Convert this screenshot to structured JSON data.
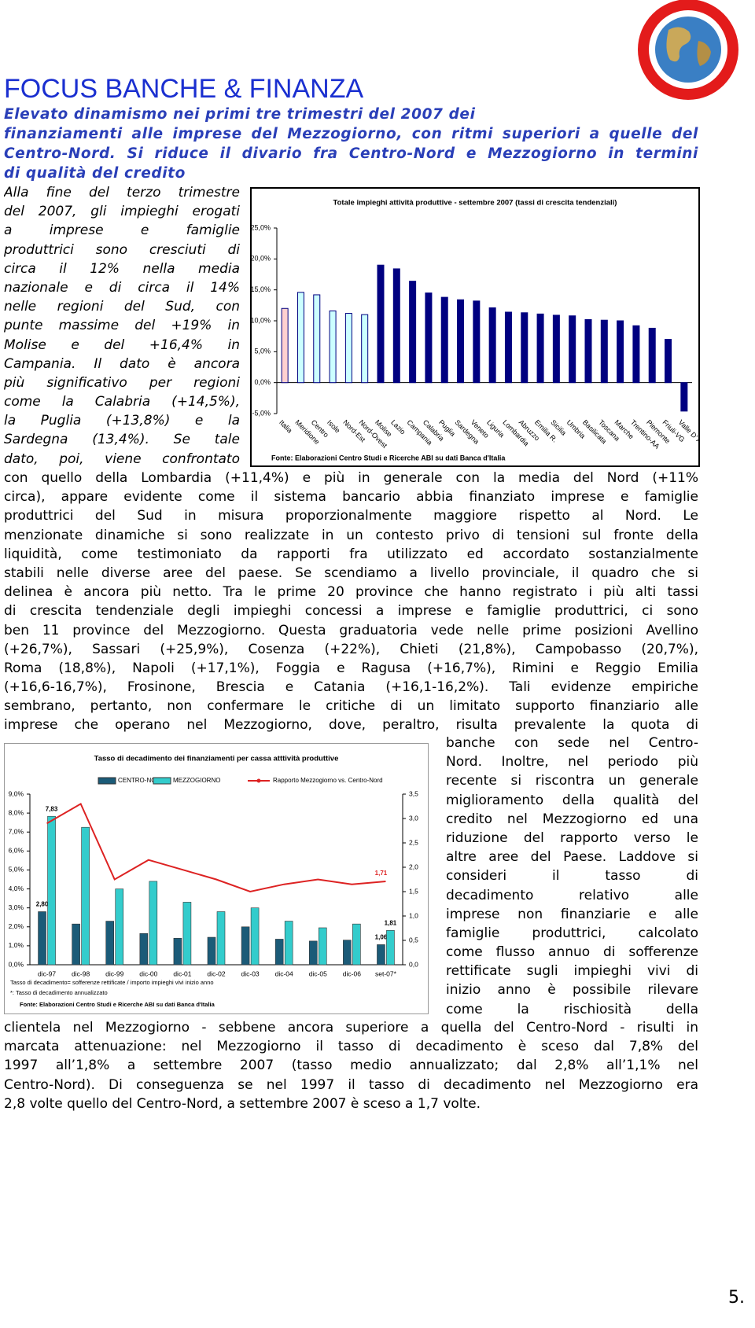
{
  "header": {
    "title": "FOCUS BANCHE & FINANZA",
    "subtitle_lines": [
      "Elevato dinamismo nei primi tre trimestri del 2007 dei",
      "finanziamenti alle imprese del Mezzogiorno, con ritmi superiori a quelle del",
      "Centro-Nord. Si riduce il divario fra Centro-Nord e Mezzogiorno in termini",
      "di qualità del credito"
    ]
  },
  "body": {
    "column_left": [
      "Alla fine del terzo trimestre",
      "del 2007, gli impieghi erogati",
      "a imprese e famiglie",
      "produttrici sono cresciuti di",
      "circa il 12% nella media",
      "nazionale e di circa il 14%",
      "nelle regioni del Sud, con",
      "punte massime del +19% in",
      "Molise e del +16,4% in",
      "Campania. Il dato è ancora",
      "più significativo per regioni",
      "come la Calabria (+14,5%),",
      "la Puglia (+13,8%) e la",
      "Sardegna (13,4%). Se tale",
      "dato, poi, viene confrontato"
    ],
    "full_1": [
      "con quello della Lombardia (+11,4%) e più in generale con la media del Nord (+11%",
      "circa), appare evidente come il sistema bancario abbia finanziato imprese e famiglie",
      "produttrici del Sud in misura proporzionalmente maggiore rispetto al Nord. Le",
      "menzionate dinamiche si sono realizzate in un contesto privo di tensioni sul fronte della",
      "liquidità, come testimoniato da rapporti fra utilizzato ed accordato sostanzialmente",
      "stabili nelle diverse aree del paese. Se scendiamo a livello provinciale, il quadro che si",
      "delinea è ancora più netto. Tra le prime 20 province che hanno registrato i più alti tassi",
      "di crescita tendenziale degli impieghi concessi a imprese e famiglie produttrici, ci sono",
      "ben 11 province del Mezzogiorno. Questa graduatoria vede nelle prime posizioni Avellino",
      "(+26,7%), Sassari (+25,9%), Cosenza (+22%), Chieti (21,8%), Campobasso (20,7%),",
      "Roma (18,8%), Napoli (+17,1%), Foggia e Ragusa (+16,7%), Rimini e Reggio Emilia",
      "(+16,6-16,7%), Frosinone, Brescia e Catania (+16,1-16,2%). Tali evidenze empiriche",
      "sembrano, pertanto, non confermare le critiche di un limitato supporto finanziario alle",
      "imprese che operano nel Mezzogiorno, dove, peraltro, risulta prevalente la quota di"
    ],
    "column_right": [
      "banche con sede nel Centro-",
      "Nord. Inoltre, nel periodo più",
      "recente si riscontra un generale",
      "miglioramento della qualità del",
      "credito nel Mezzogiorno ed una",
      "riduzione del rapporto verso le",
      "altre aree del Paese. Laddove si",
      "consideri il tasso di",
      "decadimento relativo alle",
      "imprese non finanziarie e alle",
      "famiglie produttrici, calcolato",
      "come flusso annuo di sofferenze",
      "rettificate sugli impieghi vivi di",
      "inizio anno è possibile rilevare",
      "come la rischiosità della"
    ],
    "full_2": [
      "clientela nel Mezzogiorno - sebbene ancora superiore a quella del Centro-Nord - risulti in",
      "marcata attenuazione: nel Mezzogiorno il tasso di decadimento è sceso dal 7,8% del",
      "1997 all’1,8% a settembre 2007 (tasso medio annualizzato; dal 2,8% all’1,1% nel",
      "Centro-Nord). Di conseguenza se nel 1997 il tasso di decadimento nel Mezzogiorno era",
      "2,8 volte quello del Centro-Nord, a settembre 2007 è sceso a 1,7 volte."
    ]
  },
  "page_number": "5.",
  "chart_data": [
    {
      "type": "bar",
      "title": "Totale impieghi attività produttive - settembre 2007 (tassi di crescita tendenziali)",
      "categories": [
        "Italia",
        "Meridione",
        "Centro",
        "Isole",
        "Nord-Est",
        "Nord-Ovest",
        "Molise",
        "Lazio",
        "Campania",
        "Calabria",
        "Puglia",
        "Sardegna",
        "Veneto",
        "Liguria",
        "Lombardia",
        "Abruzzo",
        "Emilia R.",
        "Sicilia",
        "Umbria",
        "Basilicata",
        "Toscana",
        "Marche",
        "Trentino-AA",
        "Piemonte",
        "Friuli-VG",
        "Valle D' Aosta"
      ],
      "values": [
        12,
        14.6,
        14.2,
        11.6,
        11.2,
        11.0,
        19.0,
        18.4,
        16.4,
        14.5,
        13.8,
        13.4,
        13.2,
        12.1,
        11.4,
        11.3,
        11.1,
        10.9,
        10.8,
        10.2,
        10.1,
        10.0,
        9.2,
        8.8,
        7.0,
        -4.6
      ],
      "colors": [
        "#ffd0d0",
        "#ccffff",
        "#ccffff",
        "#ccffff",
        "#ccffff",
        "#ccffff",
        "#000080",
        "#000080",
        "#000080",
        "#000080",
        "#000080",
        "#000080",
        "#000080",
        "#000080",
        "#000080",
        "#000080",
        "#000080",
        "#000080",
        "#000080",
        "#000080",
        "#000080",
        "#000080",
        "#000080",
        "#000080",
        "#000080",
        "#000080"
      ],
      "edgecolor": "#000080",
      "ylim": [
        -5,
        25
      ],
      "yticks": [
        {
          "value": -5,
          "label": "-5,0%"
        },
        {
          "value": 0,
          "label": "0,0%"
        },
        {
          "value": 5,
          "label": "5,0%"
        },
        {
          "value": 10,
          "label": "10,0%"
        },
        {
          "value": 15,
          "label": "15,0%"
        },
        {
          "value": 20,
          "label": "20,0%"
        },
        {
          "value": 25,
          "label": "25,0%"
        }
      ],
      "source": "Fonte: Elaborazioni Centro Studi e Ricerche ABI su dati Banca d'Italia"
    },
    {
      "type": "bar-line",
      "title": "Tasso di decadimento dei finanziamenti per cassa atttività produttive",
      "categories": [
        "dic-97",
        "dic-98",
        "dic-99",
        "dic-00",
        "dic-01",
        "dic-02",
        "dic-03",
        "dic-04",
        "dic-05",
        "dic-06",
        "set-07*"
      ],
      "series": [
        {
          "name": "CENTRO-NORD",
          "color": "#1b5b78",
          "values": [
            2.8,
            2.15,
            2.3,
            1.65,
            1.4,
            1.45,
            2.0,
            1.35,
            1.25,
            1.3,
            1.06
          ],
          "value_labels": [
            "2,80",
            null,
            null,
            null,
            null,
            null,
            null,
            null,
            null,
            null,
            "1,06"
          ]
        },
        {
          "name": "MEZZOGIORNO",
          "color": "#33cccc",
          "values": [
            7.83,
            7.25,
            4.0,
            4.4,
            3.3,
            2.8,
            3.0,
            2.3,
            1.95,
            2.15,
            1.81
          ],
          "value_labels": [
            "7,83",
            null,
            null,
            null,
            null,
            null,
            null,
            null,
            null,
            null,
            "1,81"
          ]
        },
        {
          "name": "Rapporto Mezzogiorno vs. Centro-Nord",
          "color": "#dd2222",
          "axis": "y2",
          "values": [
            2.9,
            3.3,
            1.75,
            2.15,
            1.95,
            1.75,
            1.5,
            1.65,
            1.75,
            1.65,
            1.71
          ],
          "value_labels": [
            null,
            null,
            null,
            null,
            null,
            null,
            null,
            null,
            null,
            null,
            "1,71"
          ]
        }
      ],
      "ylim": [
        0,
        9
      ],
      "yticks": [
        {
          "value": 0,
          "label": "0,0%"
        },
        {
          "value": 1,
          "label": "1,0%"
        },
        {
          "value": 2,
          "label": "2,0%"
        },
        {
          "value": 3,
          "label": "3,0%"
        },
        {
          "value": 4,
          "label": "4,0%"
        },
        {
          "value": 5,
          "label": "5,0%"
        },
        {
          "value": 6,
          "label": "6,0%"
        },
        {
          "value": 7,
          "label": "7,0%"
        },
        {
          "value": 8,
          "label": "8,0%"
        },
        {
          "value": 9,
          "label": "9,0%"
        }
      ],
      "y2lim": [
        0,
        3.5
      ],
      "y2ticks": [
        {
          "value": 0,
          "label": "0,0"
        },
        {
          "value": 0.5,
          "label": "0,5"
        },
        {
          "value": 1,
          "label": "1,0"
        },
        {
          "value": 1.5,
          "label": "1,5"
        },
        {
          "value": 2,
          "label": "2,0"
        },
        {
          "value": 2.5,
          "label": "2,5"
        },
        {
          "value": 3,
          "label": "3,0"
        },
        {
          "value": 3.5,
          "label": "3,5"
        }
      ],
      "notes": [
        "Tasso di decadimento= sofferenze rettificate / importo impieghi vivi inizio anno",
        "*: Tasso di decadimento annualizzato"
      ],
      "source": "Fonte: Elaborazioni Centro Studi e Ricerche ABI su dati Banca d'Italia"
    }
  ]
}
